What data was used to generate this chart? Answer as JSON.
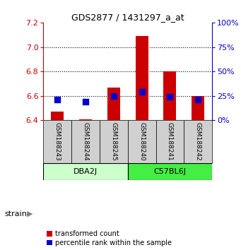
{
  "title": "GDS2877 / 1431297_a_at",
  "samples": [
    "GSM188243",
    "GSM188244",
    "GSM188245",
    "GSM188240",
    "GSM188241",
    "GSM188242"
  ],
  "groups": [
    {
      "name": "DBA2J",
      "indices": [
        0,
        1,
        2
      ],
      "color": "#ccffcc"
    },
    {
      "name": "C57BL6J",
      "indices": [
        3,
        4,
        5
      ],
      "color": "#44dd44"
    }
  ],
  "transformed_counts": [
    6.47,
    6.41,
    6.67,
    7.09,
    6.8,
    6.6
  ],
  "bar_bottom": 6.4,
  "percentile_ranks": [
    21,
    19,
    25,
    29,
    24,
    21
  ],
  "ylim_left": [
    6.4,
    7.2
  ],
  "ylim_right": [
    0,
    100
  ],
  "yticks_left": [
    6.4,
    6.6,
    6.8,
    7.0,
    7.2
  ],
  "yticks_right": [
    0,
    25,
    50,
    75,
    100
  ],
  "bar_color": "#cc0000",
  "dot_color": "#0000cc",
  "bar_width": 0.45,
  "dot_size": 40,
  "left_axis_color": "#cc0000",
  "right_axis_color": "#0000cc",
  "strain_label": "strain",
  "legend_bar_label": "transformed count",
  "legend_dot_label": "percentile rank within the sample",
  "label_area_color": "#d0d0d0"
}
